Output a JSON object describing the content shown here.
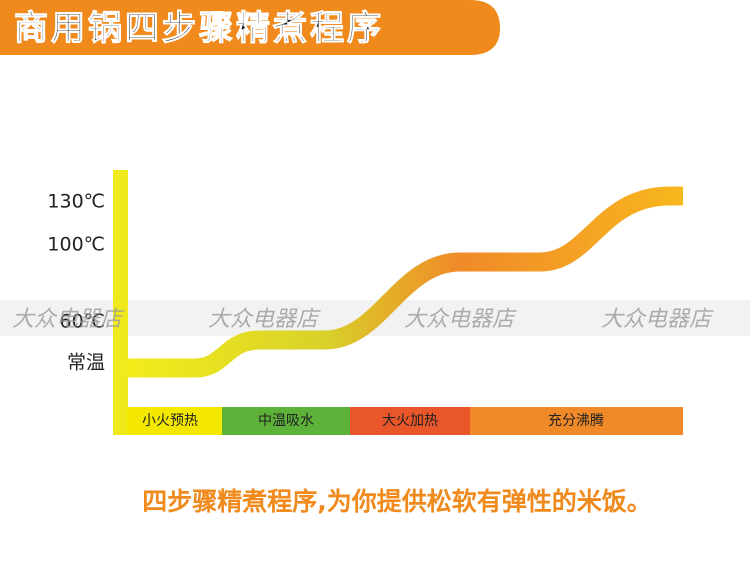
{
  "header": {
    "title": "商用锅四步骤精煮程序"
  },
  "axis": {
    "labels": [
      "130℃",
      "100℃",
      "60℃",
      "常温"
    ]
  },
  "stages": [
    "小火预热",
    "中温吸水",
    "大火加热",
    "充分沸腾"
  ],
  "caption": "四步骤精煮程序,为你提供松软有弹性的米饭。",
  "watermark": "大众电器店"
}
